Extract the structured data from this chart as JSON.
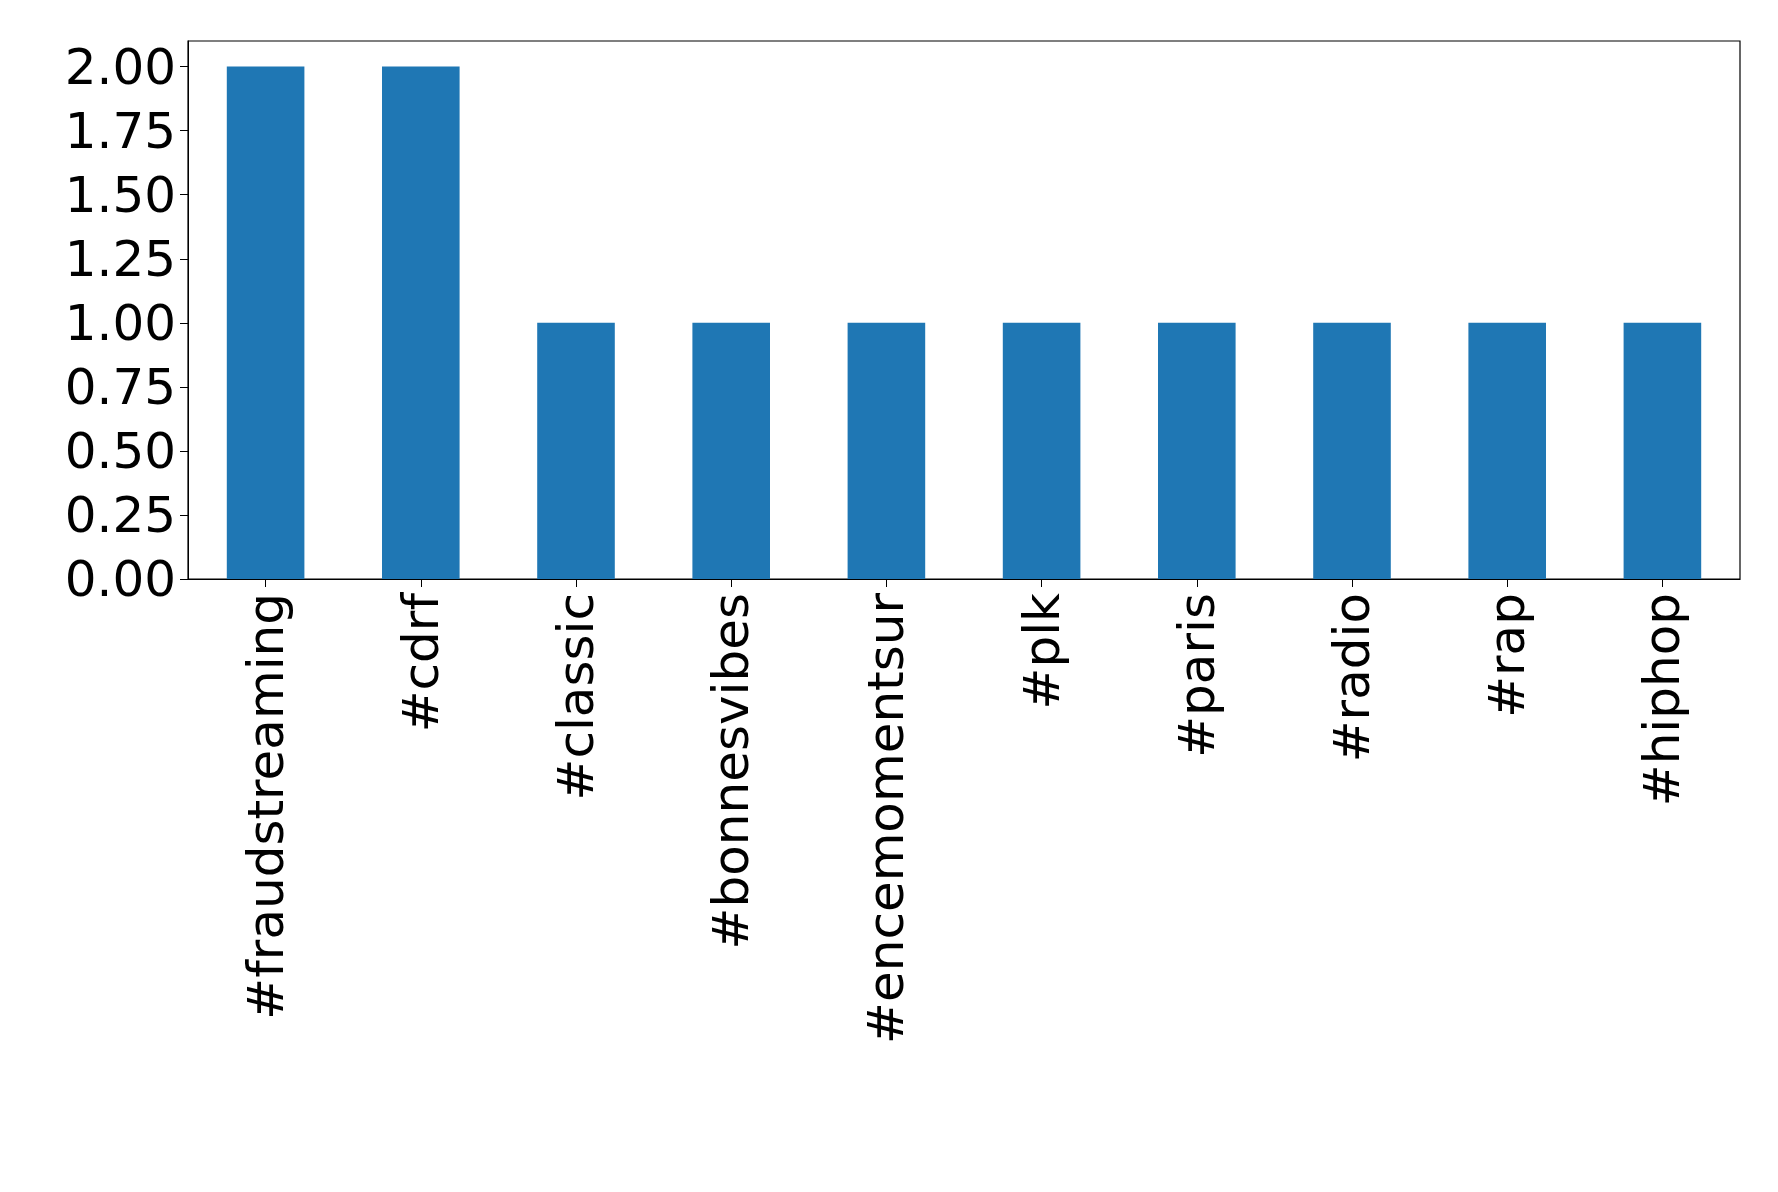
{
  "chart_data": {
    "type": "bar",
    "categories": [
      "#fraudstreaming",
      "#cdrf",
      "#classic",
      "#bonnesvibes",
      "#encemomentsur",
      "#plk",
      "#paris",
      "#radio",
      "#rap",
      "#hiphop"
    ],
    "values": [
      2,
      2,
      1,
      1,
      1,
      1,
      1,
      1,
      1,
      1
    ],
    "color": "#1f77b4",
    "ylim": [
      0,
      2.1
    ],
    "yticks": [
      {
        "value": 0,
        "label": "0.00"
      },
      {
        "value": 0.25,
        "label": "0.25"
      },
      {
        "value": 0.5,
        "label": "0.50"
      },
      {
        "value": 0.75,
        "label": "0.75"
      },
      {
        "value": 1,
        "label": "1.00"
      },
      {
        "value": 1.25,
        "label": "1.25"
      },
      {
        "value": 1.5,
        "label": "1.50"
      },
      {
        "value": 1.75,
        "label": "1.75"
      },
      {
        "value": 2,
        "label": "2.00"
      }
    ],
    "grid": false
  }
}
